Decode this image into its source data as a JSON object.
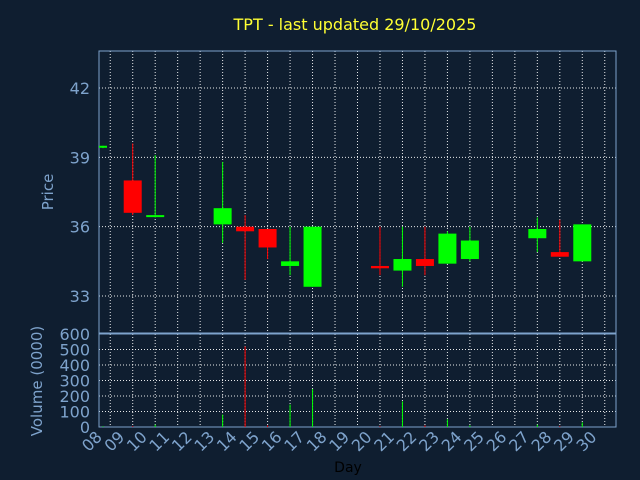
{
  "chart_data": [
    {
      "type": "candlestick",
      "title": "TPT - last updated 29/10/2025",
      "ylabel": "Price",
      "ylim": [
        31.4,
        43.6
      ],
      "yticks": [
        33,
        36,
        39,
        42
      ],
      "grid": true,
      "colors": {
        "up": "#00ff00",
        "down": "#ff0000"
      },
      "categories": [
        "08",
        "09",
        "10",
        "13",
        "14",
        "15",
        "16",
        "17",
        "20",
        "21",
        "22",
        "23",
        "24",
        "27",
        "28",
        "29"
      ],
      "open": [
        39.5,
        38.0,
        36.5,
        36.1,
        36.0,
        35.9,
        34.3,
        33.4,
        34.3,
        34.1,
        34.6,
        34.4,
        34.6,
        35.5,
        34.9,
        34.5
      ],
      "high": [
        39.5,
        39.6,
        39.1,
        38.8,
        36.5,
        35.9,
        36.0,
        36.0,
        36.0,
        36.0,
        36.0,
        35.8,
        36.0,
        36.4,
        36.3,
        36.1
      ],
      "low": [
        39.4,
        36.5,
        36.4,
        35.3,
        33.7,
        34.6,
        33.9,
        33.4,
        33.9,
        33.4,
        33.9,
        34.4,
        34.5,
        34.9,
        34.7,
        34.5
      ],
      "close": [
        39.5,
        36.6,
        36.5,
        36.8,
        35.8,
        35.1,
        34.5,
        36.0,
        34.2,
        34.6,
        34.3,
        35.7,
        35.4,
        35.9,
        34.7,
        36.1
      ]
    },
    {
      "type": "bar",
      "ylabel": "Volume (0000)",
      "xlabel": "Day",
      "ylim": [
        0,
        600
      ],
      "yticks": [
        0,
        100,
        200,
        300,
        400,
        500,
        600
      ],
      "xticks": [
        "08",
        "09",
        "10",
        "11",
        "12",
        "13",
        "14",
        "15",
        "16",
        "17",
        "18",
        "19",
        "20",
        "21",
        "22",
        "23",
        "24",
        "25",
        "26",
        "27",
        "28",
        "29",
        "30"
      ],
      "categories": [
        "08",
        "09",
        "10",
        "13",
        "14",
        "15",
        "16",
        "17",
        "20",
        "21",
        "22",
        "23",
        "24",
        "27",
        "28",
        "29"
      ],
      "values": [
        5,
        5,
        15,
        80,
        520,
        10,
        145,
        245,
        5,
        165,
        10,
        50,
        10,
        15,
        5,
        30
      ]
    }
  ]
}
